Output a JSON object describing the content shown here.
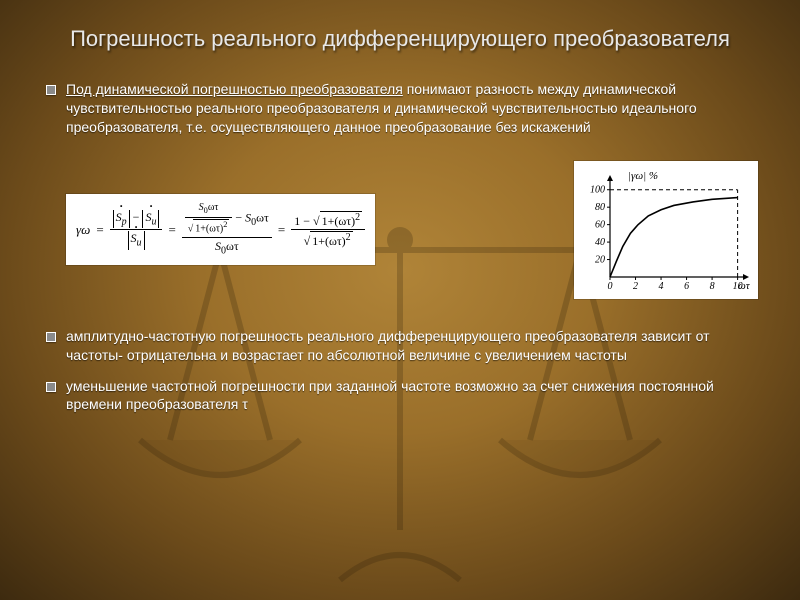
{
  "title": "Погрешность реального дифференцирующего преобразователя",
  "bullets": {
    "b1_lead": "Под динамической погрешностью преобразователя",
    "b1_rest": " понимают разность между динамической чувствительностью реального преобразователя и динамической чувствительностью идеального преобразователя, т.е. осуществляющего данное преобразование без искажений",
    "b2": "амплитудно-частотную погрешность реального дифференцирующего преобразователя зависит от частоты- отрицательна и возрастает по абсолютной величине с увеличением частоты",
    "b3": "уменьшение частотной погрешности при заданной частоте возможно за счет снижения постоянной времени преобразователя τ"
  },
  "formula": {
    "lhs": "γω",
    "Sp": "Ṡₚ",
    "Su": "Ṡᵤ",
    "S0wt": "S₀ωτ",
    "inner_den": "√1+(ωτ)²",
    "one": "1",
    "sqrt_expr": "1+(ωτ)²"
  },
  "chart": {
    "ylabel": "|γω| %",
    "xlabel": "ωτ",
    "xticks": [
      "0",
      "2",
      "4",
      "6",
      "8",
      "10"
    ],
    "yticks": [
      "20",
      "40",
      "60",
      "80",
      "100"
    ],
    "points": [
      [
        0,
        0
      ],
      [
        0.5,
        18
      ],
      [
        1.0,
        35
      ],
      [
        1.6,
        50
      ],
      [
        2.2,
        60
      ],
      [
        3.0,
        70
      ],
      [
        4.0,
        77
      ],
      [
        5.0,
        82
      ],
      [
        6.5,
        86
      ],
      [
        8.0,
        89
      ],
      [
        10.0,
        91
      ]
    ],
    "asymptote_y": 100,
    "asymptote_x": 10,
    "colors": {
      "bg": "#ffffff",
      "axis": "#000000",
      "curve": "#000000",
      "dash": "#000000"
    },
    "stroke_width": 1.6,
    "xlim": [
      0,
      10.5
    ],
    "ylim": [
      0,
      110
    ]
  }
}
